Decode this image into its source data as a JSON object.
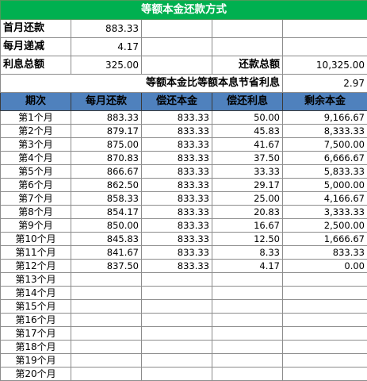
{
  "title": "等额本金还款方式",
  "info": {
    "first_month_label": "首月还款",
    "first_month_value": "883.33",
    "monthly_decrease_label": "每月递减",
    "monthly_decrease_value": "4.17",
    "total_interest_label": "利息总额",
    "total_interest_value": "325.00",
    "total_payment_label": "还款总额",
    "total_payment_value": "10,325.00",
    "compare_label": "等额本金比等额本息节省利息",
    "compare_value": "2.97"
  },
  "headers": [
    "期次",
    "每月还款",
    "偿还本金",
    "偿还利息",
    "剩余本金"
  ],
  "rows": [
    [
      "第1个月",
      "883.33",
      "833.33",
      "50.00",
      "9,166.67"
    ],
    [
      "第2个月",
      "879.17",
      "833.33",
      "45.83",
      "8,333.33"
    ],
    [
      "第3个月",
      "875.00",
      "833.33",
      "41.67",
      "7,500.00"
    ],
    [
      "第4个月",
      "870.83",
      "833.33",
      "37.50",
      "6,666.67"
    ],
    [
      "第5个月",
      "866.67",
      "833.33",
      "33.33",
      "5,833.33"
    ],
    [
      "第6个月",
      "862.50",
      "833.33",
      "29.17",
      "5,000.00"
    ],
    [
      "第7个月",
      "858.33",
      "833.33",
      "25.00",
      "4,166.67"
    ],
    [
      "第8个月",
      "854.17",
      "833.33",
      "20.83",
      "3,333.33"
    ],
    [
      "第9个月",
      "850.00",
      "833.33",
      "16.67",
      "2,500.00"
    ],
    [
      "第10个月",
      "845.83",
      "833.33",
      "12.50",
      "1,666.67"
    ],
    [
      "第11个月",
      "841.67",
      "833.33",
      "8.33",
      "833.33"
    ],
    [
      "第12个月",
      "837.50",
      "833.33",
      "4.17",
      "0.00"
    ],
    [
      "第13个月",
      "",
      "",
      "",
      ""
    ],
    [
      "第14个月",
      "",
      "",
      "",
      ""
    ],
    [
      "第15个月",
      "",
      "",
      "",
      ""
    ],
    [
      "第16个月",
      "",
      "",
      "",
      ""
    ],
    [
      "第17个月",
      "",
      "",
      "",
      ""
    ],
    [
      "第18个月",
      "",
      "",
      "",
      ""
    ],
    [
      "第19个月",
      "",
      "",
      "",
      ""
    ],
    [
      "第20个月",
      "",
      "",
      "",
      ""
    ]
  ],
  "colors": {
    "title_bg": "#00b050",
    "header_bg": "#4f81bd"
  }
}
